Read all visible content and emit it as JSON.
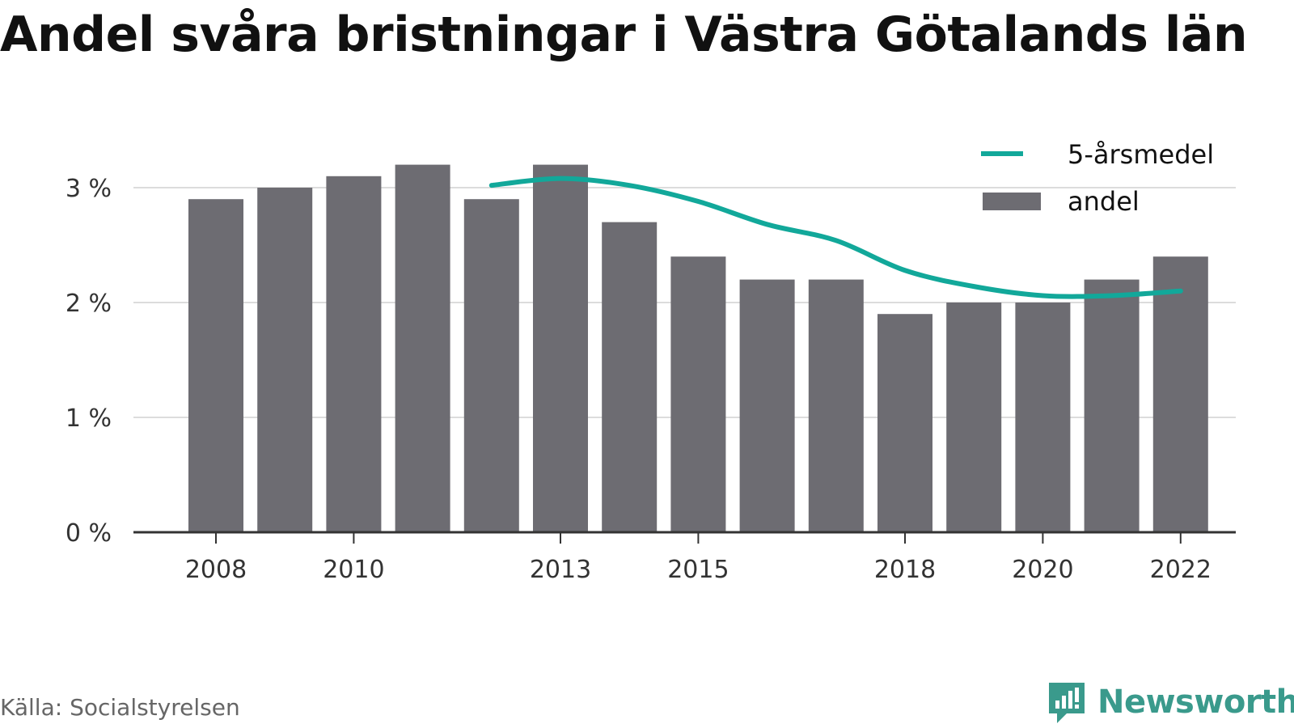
{
  "title": "Andel svåra bristningar i Västra Götalands län",
  "source": "Källa: Socialstyrelsen",
  "brand": {
    "name": "Newsworthy",
    "icon": "newsworthy-logo-icon",
    "color": "#3a9a8c"
  },
  "colors": {
    "bar": "#6d6c72",
    "line": "#12a89a",
    "grid": "#dcdcdc",
    "axis": "#333333"
  },
  "chart_data": {
    "type": "bar",
    "x": [
      2008,
      2009,
      2010,
      2011,
      2012,
      2013,
      2014,
      2015,
      2016,
      2017,
      2018,
      2019,
      2020,
      2021,
      2022
    ],
    "x_tick_labels": [
      "2008",
      "2010",
      "2013",
      "2015",
      "2018",
      "2020",
      "2022"
    ],
    "y_tick_labels": [
      "0 %",
      "1 %",
      "2 %",
      "3 %"
    ],
    "y_ticks": [
      0,
      1,
      2,
      3
    ],
    "ylim": [
      0,
      3.4
    ],
    "grid": true,
    "legend_position": "top-right",
    "series": [
      {
        "name": "andel",
        "type": "bar",
        "values": [
          2.9,
          3.0,
          3.1,
          3.2,
          2.9,
          3.2,
          2.7,
          2.4,
          2.2,
          2.2,
          1.9,
          2.0,
          2.0,
          2.2,
          2.4
        ]
      },
      {
        "name": "5-årsmedel",
        "type": "line",
        "values": [
          null,
          null,
          null,
          null,
          3.02,
          3.08,
          3.02,
          2.88,
          2.68,
          2.54,
          2.28,
          2.14,
          2.06,
          2.06,
          2.1
        ]
      }
    ]
  }
}
